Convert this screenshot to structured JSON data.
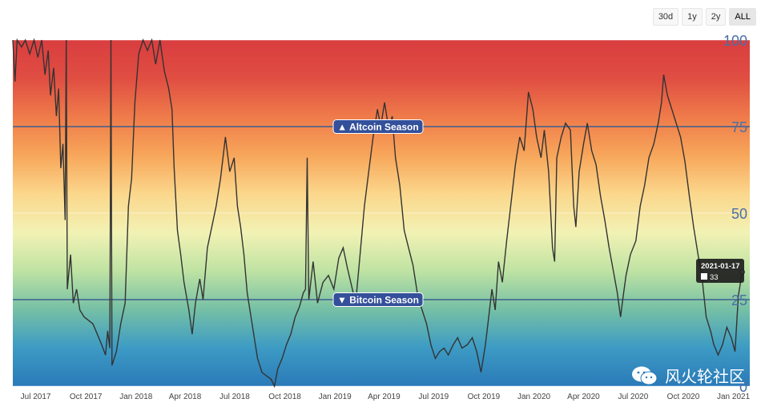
{
  "range_buttons": [
    {
      "label": "30d",
      "active": false
    },
    {
      "label": "1y",
      "active": false
    },
    {
      "label": "2y",
      "active": false
    },
    {
      "label": "ALL",
      "active": true
    }
  ],
  "chart_data": {
    "type": "line",
    "title": "",
    "xlabel": "",
    "ylabel": "",
    "ylim": [
      0,
      100
    ],
    "xlim": [
      "2017-05-20",
      "2021-01-31"
    ],
    "y_ticks": [
      {
        "value": 100,
        "label": "100"
      },
      {
        "value": 75,
        "label": "75"
      },
      {
        "value": 50,
        "label": "50"
      },
      {
        "value": 25,
        "label": "25"
      },
      {
        "value": 0,
        "label": "0"
      }
    ],
    "x_ticks": [
      {
        "date": "2017-07-01",
        "label": "Jul 2017"
      },
      {
        "date": "2017-10-01",
        "label": "Oct 2017"
      },
      {
        "date": "2018-01-01",
        "label": "Jan 2018"
      },
      {
        "date": "2018-04-01",
        "label": "Apr 2018"
      },
      {
        "date": "2018-07-01",
        "label": "Jul 2018"
      },
      {
        "date": "2018-10-01",
        "label": "Oct 2018"
      },
      {
        "date": "2019-01-01",
        "label": "Jan 2019"
      },
      {
        "date": "2019-04-01",
        "label": "Apr 2019"
      },
      {
        "date": "2019-07-01",
        "label": "Jul 2019"
      },
      {
        "date": "2019-10-01",
        "label": "Oct 2019"
      },
      {
        "date": "2020-01-01",
        "label": "Jan 2020"
      },
      {
        "date": "2020-04-01",
        "label": "Apr 2020"
      },
      {
        "date": "2020-07-01",
        "label": "Jul 2020"
      },
      {
        "date": "2020-10-01",
        "label": "Oct 2020"
      },
      {
        "date": "2021-01-01",
        "label": "Jan 2021"
      }
    ],
    "reference_lines": [
      {
        "value": 75,
        "label": "▲ Altcoin Season"
      },
      {
        "value": 25,
        "label": "▼ Bitcoin Season"
      }
    ],
    "tooltip": {
      "date": "2021-01-17",
      "value": "33"
    },
    "band_colors": [
      "#2a7ab8",
      "#3d9bc4",
      "#76c0a5",
      "#bfe3a3",
      "#f2f2b4",
      "#fbd78c",
      "#f7a65a",
      "#ef7b4a",
      "#e04e42",
      "#d93d3f"
    ],
    "line_color": "#333333",
    "series": [
      {
        "points": [
          [
            "2017-05-20",
            100
          ],
          [
            "2017-05-24",
            88
          ],
          [
            "2017-05-28",
            100
          ],
          [
            "2017-06-05",
            98
          ],
          [
            "2017-06-12",
            100
          ],
          [
            "2017-06-20",
            96
          ],
          [
            "2017-06-28",
            100
          ],
          [
            "2017-07-05",
            95
          ],
          [
            "2017-07-12",
            100
          ],
          [
            "2017-07-18",
            90
          ],
          [
            "2017-07-24",
            97
          ],
          [
            "2017-07-28",
            84
          ],
          [
            "2017-08-03",
            92
          ],
          [
            "2017-08-08",
            78
          ],
          [
            "2017-08-12",
            86
          ],
          [
            "2017-08-16",
            63
          ],
          [
            "2017-08-20",
            70
          ],
          [
            "2017-08-24",
            48
          ],
          [
            "2017-08-26",
            100
          ],
          [
            "2017-08-28",
            28
          ],
          [
            "2017-09-03",
            38
          ],
          [
            "2017-09-08",
            24
          ],
          [
            "2017-09-14",
            28
          ],
          [
            "2017-09-20",
            22
          ],
          [
            "2017-09-28",
            20
          ],
          [
            "2017-10-06",
            19
          ],
          [
            "2017-10-14",
            18
          ],
          [
            "2017-10-22",
            15
          ],
          [
            "2017-10-30",
            12
          ],
          [
            "2017-11-06",
            9
          ],
          [
            "2017-11-10",
            16
          ],
          [
            "2017-11-14",
            11
          ],
          [
            "2017-11-16",
            100
          ],
          [
            "2017-11-18",
            6
          ],
          [
            "2017-11-26",
            10
          ],
          [
            "2017-12-04",
            18
          ],
          [
            "2017-12-12",
            24
          ],
          [
            "2017-12-18",
            52
          ],
          [
            "2017-12-24",
            60
          ],
          [
            "2017-12-30",
            82
          ],
          [
            "2018-01-06",
            96
          ],
          [
            "2018-01-14",
            100
          ],
          [
            "2018-01-22",
            97
          ],
          [
            "2018-01-30",
            100
          ],
          [
            "2018-02-06",
            93
          ],
          [
            "2018-02-14",
            100
          ],
          [
            "2018-02-22",
            91
          ],
          [
            "2018-03-02",
            86
          ],
          [
            "2018-03-08",
            80
          ],
          [
            "2018-03-12",
            63
          ],
          [
            "2018-03-18",
            45
          ],
          [
            "2018-03-24",
            38
          ],
          [
            "2018-03-30",
            30
          ],
          [
            "2018-04-08",
            22
          ],
          [
            "2018-04-14",
            15
          ],
          [
            "2018-04-20",
            24
          ],
          [
            "2018-04-28",
            31
          ],
          [
            "2018-05-04",
            25
          ],
          [
            "2018-05-12",
            40
          ],
          [
            "2018-05-20",
            46
          ],
          [
            "2018-05-28",
            52
          ],
          [
            "2018-06-05",
            60
          ],
          [
            "2018-06-14",
            72
          ],
          [
            "2018-06-22",
            62
          ],
          [
            "2018-06-30",
            66
          ],
          [
            "2018-07-06",
            52
          ],
          [
            "2018-07-12",
            46
          ],
          [
            "2018-07-18",
            38
          ],
          [
            "2018-07-24",
            27
          ],
          [
            "2018-08-02",
            18
          ],
          [
            "2018-08-12",
            8
          ],
          [
            "2018-08-20",
            4
          ],
          [
            "2018-08-28",
            3
          ],
          [
            "2018-09-06",
            2
          ],
          [
            "2018-09-12",
            0
          ],
          [
            "2018-09-18",
            5
          ],
          [
            "2018-09-26",
            8
          ],
          [
            "2018-10-04",
            12
          ],
          [
            "2018-10-12",
            15
          ],
          [
            "2018-10-20",
            20
          ],
          [
            "2018-10-28",
            23
          ],
          [
            "2018-11-04",
            27
          ],
          [
            "2018-11-08",
            28
          ],
          [
            "2018-11-11",
            66
          ],
          [
            "2018-11-14",
            25
          ],
          [
            "2018-11-22",
            36
          ],
          [
            "2018-11-30",
            24
          ],
          [
            "2018-12-10",
            30
          ],
          [
            "2018-12-20",
            32
          ],
          [
            "2018-12-30",
            28
          ],
          [
            "2019-01-08",
            37
          ],
          [
            "2019-01-16",
            40
          ],
          [
            "2019-01-24",
            34
          ],
          [
            "2019-02-02",
            28
          ],
          [
            "2019-02-08",
            24
          ],
          [
            "2019-02-16",
            38
          ],
          [
            "2019-02-24",
            52
          ],
          [
            "2019-03-04",
            62
          ],
          [
            "2019-03-12",
            72
          ],
          [
            "2019-03-20",
            80
          ],
          [
            "2019-03-26",
            75
          ],
          [
            "2019-04-02",
            82
          ],
          [
            "2019-04-10",
            74
          ],
          [
            "2019-04-16",
            78
          ],
          [
            "2019-04-22",
            66
          ],
          [
            "2019-04-30",
            58
          ],
          [
            "2019-05-08",
            45
          ],
          [
            "2019-05-16",
            40
          ],
          [
            "2019-05-24",
            35
          ],
          [
            "2019-06-02",
            26
          ],
          [
            "2019-06-10",
            22
          ],
          [
            "2019-06-18",
            18
          ],
          [
            "2019-06-26",
            12
          ],
          [
            "2019-07-04",
            8
          ],
          [
            "2019-07-12",
            10
          ],
          [
            "2019-07-20",
            11
          ],
          [
            "2019-07-28",
            9
          ],
          [
            "2019-08-06",
            12
          ],
          [
            "2019-08-14",
            14
          ],
          [
            "2019-08-22",
            11
          ],
          [
            "2019-09-01",
            12
          ],
          [
            "2019-09-10",
            14
          ],
          [
            "2019-09-18",
            10
          ],
          [
            "2019-09-26",
            4
          ],
          [
            "2019-10-04",
            12
          ],
          [
            "2019-10-10",
            20
          ],
          [
            "2019-10-16",
            28
          ],
          [
            "2019-10-22",
            22
          ],
          [
            "2019-10-28",
            36
          ],
          [
            "2019-11-04",
            30
          ],
          [
            "2019-11-12",
            42
          ],
          [
            "2019-11-20",
            53
          ],
          [
            "2019-11-28",
            64
          ],
          [
            "2019-12-06",
            72
          ],
          [
            "2019-12-14",
            68
          ],
          [
            "2019-12-22",
            85
          ],
          [
            "2019-12-30",
            80
          ],
          [
            "2020-01-06",
            72
          ],
          [
            "2020-01-14",
            66
          ],
          [
            "2020-01-20",
            74
          ],
          [
            "2020-01-28",
            62
          ],
          [
            "2020-02-04",
            40
          ],
          [
            "2020-02-08",
            36
          ],
          [
            "2020-02-12",
            66
          ],
          [
            "2020-02-20",
            72
          ],
          [
            "2020-02-28",
            76
          ],
          [
            "2020-03-08",
            74
          ],
          [
            "2020-03-14",
            52
          ],
          [
            "2020-03-18",
            46
          ],
          [
            "2020-03-24",
            62
          ],
          [
            "2020-04-01",
            70
          ],
          [
            "2020-04-08",
            76
          ],
          [
            "2020-04-16",
            68
          ],
          [
            "2020-04-24",
            64
          ],
          [
            "2020-05-02",
            55
          ],
          [
            "2020-05-10",
            48
          ],
          [
            "2020-05-18",
            40
          ],
          [
            "2020-05-26",
            33
          ],
          [
            "2020-06-02",
            27
          ],
          [
            "2020-06-08",
            20
          ],
          [
            "2020-06-12",
            25
          ],
          [
            "2020-06-18",
            32
          ],
          [
            "2020-06-26",
            38
          ],
          [
            "2020-07-06",
            42
          ],
          [
            "2020-07-14",
            52
          ],
          [
            "2020-07-22",
            58
          ],
          [
            "2020-07-30",
            66
          ],
          [
            "2020-08-08",
            70
          ],
          [
            "2020-08-16",
            76
          ],
          [
            "2020-08-22",
            82
          ],
          [
            "2020-08-26",
            90
          ],
          [
            "2020-09-02",
            84
          ],
          [
            "2020-09-10",
            80
          ],
          [
            "2020-09-18",
            76
          ],
          [
            "2020-09-26",
            72
          ],
          [
            "2020-10-04",
            65
          ],
          [
            "2020-10-12",
            55
          ],
          [
            "2020-10-20",
            46
          ],
          [
            "2020-10-28",
            38
          ],
          [
            "2020-11-04",
            32
          ],
          [
            "2020-11-12",
            20
          ],
          [
            "2020-11-20",
            16
          ],
          [
            "2020-11-26",
            12
          ],
          [
            "2020-12-04",
            9
          ],
          [
            "2020-12-12",
            12
          ],
          [
            "2020-12-20",
            17
          ],
          [
            "2020-12-28",
            14
          ],
          [
            "2021-01-04",
            10
          ],
          [
            "2021-01-10",
            26
          ],
          [
            "2021-01-17",
            33
          ]
        ]
      }
    ]
  },
  "watermark": {
    "text": "风火轮社区",
    "icon": "wechat-icon"
  }
}
